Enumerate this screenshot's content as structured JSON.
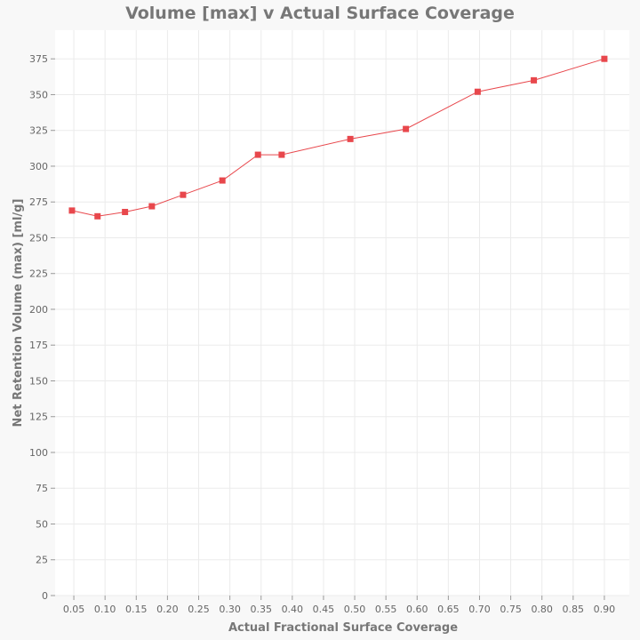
{
  "chart_data": {
    "type": "line",
    "title": "Volume [max] v Actual Surface Coverage",
    "xlabel": "Actual Fractional Surface Coverage",
    "ylabel": "Net Retention Volume (max) [ml/g]",
    "xlim": [
      0.02,
      0.94
    ],
    "ylim": [
      0,
      395
    ],
    "xticks": [
      0.05,
      0.1,
      0.15,
      0.2,
      0.25,
      0.3,
      0.35,
      0.4,
      0.45,
      0.5,
      0.55,
      0.6,
      0.65,
      0.7,
      0.75,
      0.8,
      0.85,
      0.9
    ],
    "xtick_labels": [
      "0.05",
      "0.10",
      "0.15",
      "0.20",
      "0.25",
      "0.30",
      "0.35",
      "0.40",
      "0.45",
      "0.50",
      "0.55",
      "0.60",
      "0.65",
      "0.70",
      "0.75",
      "0.80",
      "0.85",
      "0.90"
    ],
    "yticks": [
      0,
      25,
      50,
      75,
      100,
      125,
      150,
      175,
      200,
      225,
      250,
      275,
      300,
      325,
      350,
      375
    ],
    "ytick_labels": [
      "0",
      "25",
      "50",
      "75",
      "100",
      "125",
      "150",
      "175",
      "200",
      "225",
      "250",
      "275",
      "300",
      "325",
      "350",
      "375"
    ],
    "grid": true,
    "marker": "square",
    "series": [
      {
        "color": "#e8474c",
        "x": [
          0.047,
          0.088,
          0.132,
          0.175,
          0.225,
          0.288,
          0.345,
          0.383,
          0.493,
          0.582,
          0.697,
          0.787,
          0.9
        ],
        "y": [
          269,
          265,
          268,
          272,
          280,
          290,
          308,
          308,
          319,
          326,
          352,
          360,
          375
        ]
      }
    ]
  }
}
